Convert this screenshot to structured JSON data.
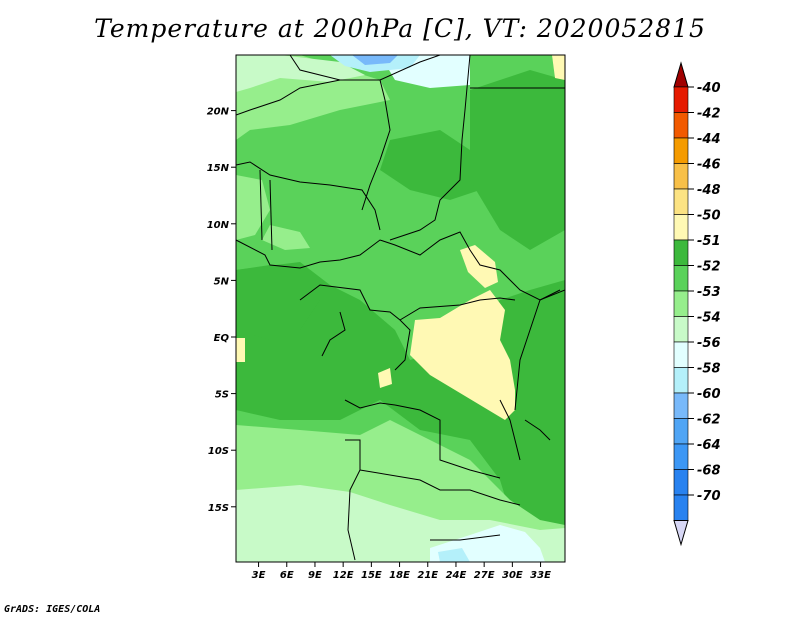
{
  "title": "Temperature at 200hPa [C], VT: 2020052815",
  "credit": "GrADS: IGES/COLA",
  "map": {
    "lon_ticks": [
      {
        "label": "3E",
        "value": 3
      },
      {
        "label": "6E",
        "value": 6
      },
      {
        "label": "9E",
        "value": 9
      },
      {
        "label": "12E",
        "value": 12
      },
      {
        "label": "15E",
        "value": 15
      },
      {
        "label": "18E",
        "value": 18
      },
      {
        "label": "21E",
        "value": 21
      },
      {
        "label": "24E",
        "value": 24
      },
      {
        "label": "27E",
        "value": 27
      },
      {
        "label": "30E",
        "value": 30
      },
      {
        "label": "33E",
        "value": 33
      }
    ],
    "lat_ticks": [
      {
        "label": "20N",
        "value": 20
      },
      {
        "label": "15N",
        "value": 15
      },
      {
        "label": "10N",
        "value": 10
      },
      {
        "label": "5N",
        "value": 5
      },
      {
        "label": "EQ",
        "value": 0
      },
      {
        "label": "5S",
        "value": -5
      },
      {
        "label": "10S",
        "value": -10
      },
      {
        "label": "15S",
        "value": -15
      }
    ]
  },
  "legend": {
    "levels": [
      {
        "label": "-40",
        "color": "#a00000"
      },
      {
        "label": "-42",
        "color": "#e61a00"
      },
      {
        "label": "-44",
        "color": "#f25a00"
      },
      {
        "label": "-46",
        "color": "#f59b00"
      },
      {
        "label": "-48",
        "color": "#f8c048"
      },
      {
        "label": "-50",
        "color": "#fce383"
      },
      {
        "label": "-51",
        "color": "#fff9b4"
      },
      {
        "label": "-52",
        "color": "#3cb93c"
      },
      {
        "label": "-53",
        "color": "#5ad25a"
      },
      {
        "label": "-54",
        "color": "#96ee8c"
      },
      {
        "label": "-56",
        "color": "#c8fac8"
      },
      {
        "label": "-58",
        "color": "#e2ffff"
      },
      {
        "label": "-60",
        "color": "#b4f0fa"
      },
      {
        "label": "-62",
        "color": "#78b9fa"
      },
      {
        "label": "-64",
        "color": "#50a5f5"
      },
      {
        "label": "-68",
        "color": "#3c97f5"
      },
      {
        "label": "-70",
        "color": "#2882f0"
      }
    ],
    "extra_bands": [
      "#1e6ee6",
      "#1464d2",
      "#0a50b4",
      "#0a3c96",
      "#0a1464"
    ],
    "bottom_color": "#d7d7f5"
  },
  "colors": {
    "bg_green": "#5ad25a",
    "dark_green": "#3cb93c",
    "light_green": "#96ee8c",
    "pale_green": "#c8fac8",
    "pale_yellow": "#fff9b4",
    "pale_cyan": "#e2ffff",
    "sky_blue": "#b4f0fa",
    "blue": "#78b9fa"
  }
}
